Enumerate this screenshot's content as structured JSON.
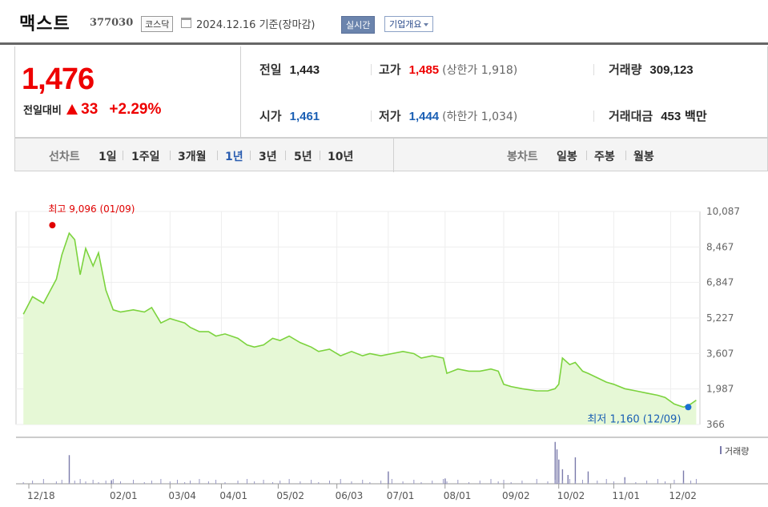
{
  "header": {
    "name": "맥스트",
    "code": "377030",
    "market": "코스닥",
    "date": "2024.12.16 기준(장마감)",
    "realtime_label": "실시간",
    "company_label": "기업개요"
  },
  "price": {
    "current": "1,476",
    "change_label": "전일대비",
    "change_value": "33",
    "change_rate": "+2.29%"
  },
  "info": {
    "prev_close_label": "전일",
    "prev_close": "1,443",
    "high_label": "고가",
    "high": "1,485",
    "upper_limit": "(상한가 1,918)",
    "volume_label": "거래량",
    "volume": "309,123",
    "open_label": "시가",
    "open": "1,461",
    "low_label": "저가",
    "low": "1,444",
    "lower_limit": "(하한가 1,034)",
    "amount_label": "거래대금",
    "amount": "453",
    "amount_unit": "백만"
  },
  "period_bar": {
    "line_label": "선차트",
    "line_options": [
      "1일",
      "1주일",
      "3개월",
      "1년",
      "3년",
      "5년",
      "10년"
    ],
    "active": "1년",
    "candle_label": "봉차트",
    "candle_options": [
      "일봉",
      "주봉",
      "월봉"
    ]
  },
  "colors": {
    "up": "#e00000",
    "down": "#1a5fb4",
    "line": "#7cd33e",
    "fill": "#e6f8d6",
    "volume": "#7b7bab"
  },
  "chart_data": {
    "type": "area",
    "y_ticks": [
      "10,087",
      "8,467",
      "6,847",
      "5,227",
      "3,607",
      "1,987",
      "366"
    ],
    "ylim": [
      366,
      10087
    ],
    "x_ticks": [
      "12/18",
      "02/01",
      "03/04",
      "04/01",
      "05/02",
      "06/03",
      "07/01",
      "08/01",
      "09/02",
      "10/02",
      "11/01",
      "12/02"
    ],
    "x_tick_dates": [
      "2023-12-18",
      "2024-02-01",
      "2024-03-04",
      "2024-04-01",
      "2024-05-02",
      "2024-06-03",
      "2024-07-01",
      "2024-08-01",
      "2024-09-02",
      "2024-10-02",
      "2024-11-01",
      "2024-12-02"
    ],
    "max_label": "최고 9,096 (01/09)",
    "min_label": "최저 1,160 (12/09)",
    "max_point": {
      "date": "2024-01-09",
      "value": 9096
    },
    "min_point": {
      "date": "2024-12-09",
      "value": 1160
    },
    "volume_label": "거래량",
    "series": [
      {
        "dates": [
          "2023-12-15",
          "2023-12-20",
          "2023-12-26",
          "2024-01-02",
          "2024-01-05",
          "2024-01-09",
          "2024-01-12",
          "2024-01-15",
          "2024-01-18",
          "2024-01-22",
          "2024-01-25",
          "2024-01-29",
          "2024-02-02",
          "2024-02-06",
          "2024-02-13",
          "2024-02-19",
          "2024-02-23",
          "2024-02-28",
          "2024-03-04",
          "2024-03-08",
          "2024-03-12",
          "2024-03-15",
          "2024-03-20",
          "2024-03-25",
          "2024-03-29",
          "2024-04-03",
          "2024-04-10",
          "2024-04-15",
          "2024-04-19",
          "2024-04-24",
          "2024-04-29",
          "2024-05-03",
          "2024-05-08",
          "2024-05-14",
          "2024-05-20",
          "2024-05-24",
          "2024-05-30",
          "2024-06-05",
          "2024-06-11",
          "2024-06-17",
          "2024-06-21",
          "2024-06-27",
          "2024-07-03",
          "2024-07-09",
          "2024-07-15",
          "2024-07-19",
          "2024-07-25",
          "2024-07-31",
          "2024-08-02",
          "2024-08-08",
          "2024-08-14",
          "2024-08-20",
          "2024-08-26",
          "2024-08-30",
          "2024-09-02",
          "2024-09-06",
          "2024-09-12",
          "2024-09-20",
          "2024-09-26",
          "2024-09-30",
          "2024-10-02",
          "2024-10-04",
          "2024-10-08",
          "2024-10-11",
          "2024-10-15",
          "2024-10-18",
          "2024-10-23",
          "2024-10-28",
          "2024-11-01",
          "2024-11-07",
          "2024-11-13",
          "2024-11-19",
          "2024-11-25",
          "2024-11-29",
          "2024-12-04",
          "2024-12-09",
          "2024-12-13",
          "2024-12-16"
        ],
        "values": [
          5400,
          6200,
          5900,
          7000,
          8100,
          9096,
          8800,
          7200,
          8400,
          7600,
          8200,
          6500,
          5600,
          5500,
          5600,
          5500,
          5700,
          5000,
          5200,
          5100,
          5000,
          4800,
          4600,
          4600,
          4400,
          4500,
          4300,
          4000,
          3900,
          4000,
          4300,
          4200,
          4400,
          4100,
          3900,
          3700,
          3800,
          3500,
          3700,
          3500,
          3600,
          3500,
          3600,
          3700,
          3600,
          3400,
          3500,
          3400,
          2700,
          2900,
          2800,
          2800,
          2900,
          2800,
          2200,
          2100,
          2000,
          1900,
          1900,
          2000,
          2200,
          3400,
          3100,
          3200,
          2800,
          2700,
          2500,
          2300,
          2200,
          2000,
          1900,
          1800,
          1700,
          1600,
          1300,
          1160,
          1300,
          1476
        ]
      }
    ],
    "volume_dates": [
      "2024-01-09",
      "2024-02-01",
      "2024-07-01",
      "2024-08-01",
      "2024-09-30",
      "2024-10-01",
      "2024-10-02",
      "2024-10-04",
      "2024-10-07",
      "2024-10-11",
      "2024-10-18",
      "2024-11-07",
      "2024-12-09"
    ],
    "volume_values": [
      0.65,
      0.08,
      0.28,
      0.12,
      0.95,
      0.78,
      0.55,
      0.33,
      0.2,
      0.6,
      0.28,
      0.15,
      0.3
    ]
  }
}
